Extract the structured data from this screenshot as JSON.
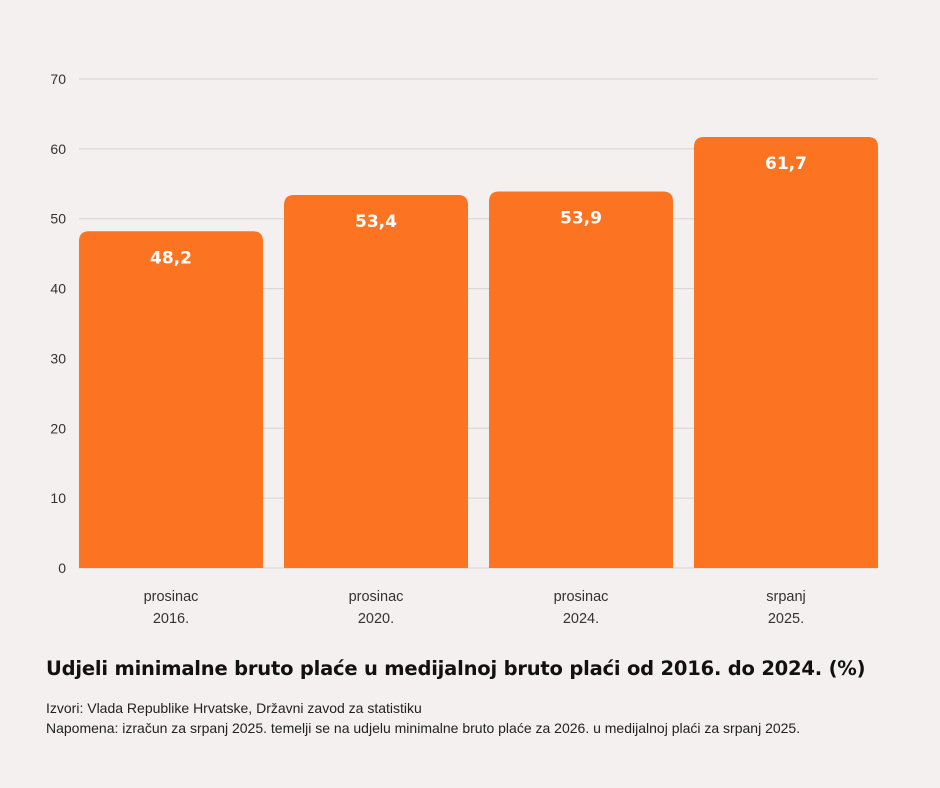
{
  "colors": {
    "background": "#f4f0ef",
    "bar": "#fc7321",
    "grid": "#d6d2d1",
    "bar_label": "#ffffff"
  },
  "chart_data": {
    "type": "bar",
    "categories": [
      [
        "prosinac",
        "2016."
      ],
      [
        "prosinac",
        "2020."
      ],
      [
        "prosinac",
        "2024."
      ],
      [
        "srpanj",
        "2025."
      ]
    ],
    "values": [
      48.2,
      53.4,
      53.9,
      61.7
    ],
    "value_labels": [
      "48,2",
      "53,4",
      "53,9",
      "61,7"
    ],
    "ylim": [
      0,
      70
    ],
    "yticks": [
      0,
      10,
      20,
      30,
      40,
      50,
      60,
      70
    ],
    "grid": true,
    "legend": "none",
    "title": "Udjeli minimalne bruto plaće u medijalnoj bruto plaći od 2016. do 2024. (%)"
  },
  "notes": {
    "source": "Izvori: Vlada Republike Hrvatske, Državni zavod za statistiku",
    "remark": "Napomena: izračun za srpanj 2025. temelji se na udjelu minimalne bruto plaće za 2026. u medijalnoj plaći za srpanj 2025."
  }
}
